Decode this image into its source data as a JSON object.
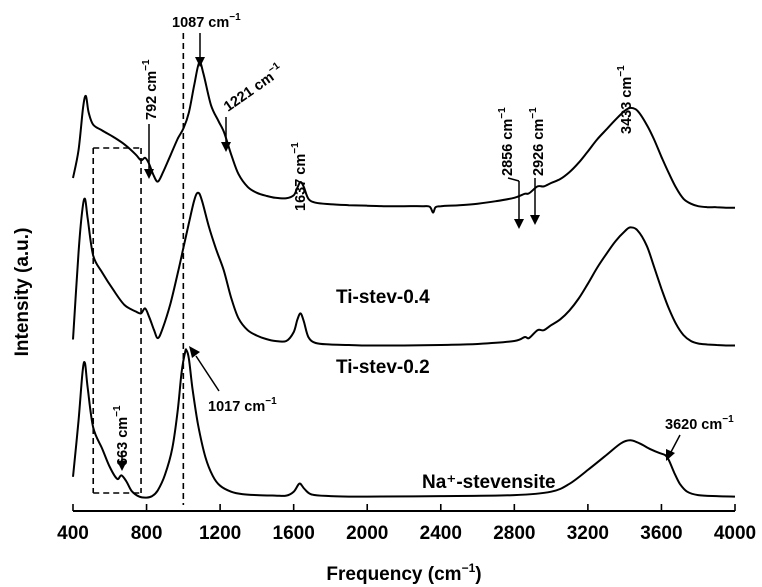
{
  "chart_data": {
    "type": "line",
    "title": "",
    "xlabel": "Frequency",
    "xlabel_unit_base": "cm",
    "xlabel_unit_exp": "−1",
    "ylabel": "Intensity (a.u.)",
    "xlim": [
      400,
      4000
    ],
    "x_ticks": [
      400,
      800,
      1200,
      1600,
      2000,
      2400,
      2800,
      3200,
      3600,
      4000
    ],
    "x_tick_labels": [
      "400",
      "800",
      "1200",
      "1600",
      "2000",
      "2400",
      "2800",
      "3200",
      "3600",
      "4000"
    ],
    "y_ticks": [],
    "grid": false,
    "legend": "none",
    "series": [
      {
        "name": "Ti-stev-0.4",
        "baseline": 0.0,
        "points": [
          [
            400,
            0.62
          ],
          [
            430,
            1.18
          ],
          [
            455,
            2.05
          ],
          [
            470,
            2.28
          ],
          [
            485,
            1.95
          ],
          [
            510,
            1.7
          ],
          [
            560,
            1.58
          ],
          [
            620,
            1.45
          ],
          [
            680,
            1.3
          ],
          [
            740,
            1.1
          ],
          [
            770,
            0.98
          ],
          [
            792,
            1.03
          ],
          [
            812,
            0.92
          ],
          [
            840,
            0.66
          ],
          [
            862,
            0.55
          ],
          [
            890,
            0.74
          ],
          [
            930,
            1.08
          ],
          [
            970,
            1.42
          ],
          [
            1000,
            1.62
          ],
          [
            1030,
            1.94
          ],
          [
            1060,
            2.52
          ],
          [
            1087,
            2.96
          ],
          [
            1110,
            2.72
          ],
          [
            1150,
            2.1
          ],
          [
            1190,
            1.78
          ],
          [
            1221,
            1.55
          ],
          [
            1260,
            1.1
          ],
          [
            1300,
            0.7
          ],
          [
            1350,
            0.44
          ],
          [
            1400,
            0.32
          ],
          [
            1450,
            0.26
          ],
          [
            1500,
            0.22
          ],
          [
            1560,
            0.21
          ],
          [
            1600,
            0.27
          ],
          [
            1620,
            0.42
          ],
          [
            1637,
            0.54
          ],
          [
            1655,
            0.44
          ],
          [
            1680,
            0.2
          ],
          [
            1720,
            0.12
          ],
          [
            1800,
            0.09
          ],
          [
            1900,
            0.07
          ],
          [
            2000,
            0.06
          ],
          [
            2100,
            0.05
          ],
          [
            2200,
            0.05
          ],
          [
            2300,
            0.05
          ],
          [
            2340,
            0.04
          ],
          [
            2358,
            -0.08
          ],
          [
            2372,
            0.03
          ],
          [
            2400,
            0.05
          ],
          [
            2500,
            0.07
          ],
          [
            2600,
            0.1
          ],
          [
            2700,
            0.15
          ],
          [
            2800,
            0.22
          ],
          [
            2856,
            0.3
          ],
          [
            2880,
            0.31
          ],
          [
            2926,
            0.45
          ],
          [
            2960,
            0.45
          ],
          [
            3000,
            0.52
          ],
          [
            3050,
            0.6
          ],
          [
            3100,
            0.74
          ],
          [
            3150,
            0.93
          ],
          [
            3200,
            1.16
          ],
          [
            3250,
            1.4
          ],
          [
            3300,
            1.6
          ],
          [
            3350,
            1.8
          ],
          [
            3400,
            1.98
          ],
          [
            3433,
            2.04
          ],
          [
            3470,
            1.98
          ],
          [
            3520,
            1.7
          ],
          [
            3560,
            1.4
          ],
          [
            3600,
            1.05
          ],
          [
            3640,
            0.72
          ],
          [
            3680,
            0.42
          ],
          [
            3720,
            0.2
          ],
          [
            3760,
            0.1
          ],
          [
            3800,
            0.05
          ],
          [
            3850,
            0.03
          ],
          [
            3900,
            0.03
          ],
          [
            3950,
            0.02
          ],
          [
            4000,
            0.02
          ]
        ]
      },
      {
        "name": "Ti-stev-0.2",
        "baseline": -2.8,
        "points": [
          [
            400,
            0.15
          ],
          [
            430,
            1.9
          ],
          [
            450,
            2.75
          ],
          [
            465,
            3.0
          ],
          [
            480,
            2.6
          ],
          [
            510,
            1.85
          ],
          [
            560,
            1.5
          ],
          [
            620,
            1.15
          ],
          [
            680,
            0.85
          ],
          [
            740,
            0.72
          ],
          [
            770,
            0.68
          ],
          [
            792,
            0.78
          ],
          [
            815,
            0.6
          ],
          [
            840,
            0.35
          ],
          [
            862,
            0.18
          ],
          [
            890,
            0.4
          ],
          [
            930,
            0.88
          ],
          [
            970,
            1.5
          ],
          [
            1000,
            2.0
          ],
          [
            1030,
            2.5
          ],
          [
            1060,
            2.98
          ],
          [
            1080,
            3.12
          ],
          [
            1100,
            2.98
          ],
          [
            1140,
            2.42
          ],
          [
            1180,
            1.96
          ],
          [
            1220,
            1.55
          ],
          [
            1260,
            1.0
          ],
          [
            1300,
            0.58
          ],
          [
            1350,
            0.34
          ],
          [
            1400,
            0.23
          ],
          [
            1450,
            0.16
          ],
          [
            1500,
            0.12
          ],
          [
            1560,
            0.12
          ],
          [
            1600,
            0.3
          ],
          [
            1620,
            0.55
          ],
          [
            1637,
            0.68
          ],
          [
            1655,
            0.52
          ],
          [
            1680,
            0.2
          ],
          [
            1720,
            0.08
          ],
          [
            1800,
            0.05
          ],
          [
            1900,
            0.04
          ],
          [
            2000,
            0.03
          ],
          [
            2200,
            0.03
          ],
          [
            2400,
            0.04
          ],
          [
            2600,
            0.06
          ],
          [
            2800,
            0.12
          ],
          [
            2856,
            0.2
          ],
          [
            2880,
            0.18
          ],
          [
            2926,
            0.34
          ],
          [
            2960,
            0.34
          ],
          [
            3000,
            0.44
          ],
          [
            3050,
            0.56
          ],
          [
            3100,
            0.74
          ],
          [
            3150,
            0.98
          ],
          [
            3200,
            1.28
          ],
          [
            3250,
            1.6
          ],
          [
            3300,
            1.88
          ],
          [
            3350,
            2.14
          ],
          [
            3400,
            2.34
          ],
          [
            3430,
            2.42
          ],
          [
            3470,
            2.36
          ],
          [
            3520,
            2.05
          ],
          [
            3560,
            1.62
          ],
          [
            3600,
            1.18
          ],
          [
            3640,
            0.78
          ],
          [
            3680,
            0.46
          ],
          [
            3720,
            0.24
          ],
          [
            3760,
            0.12
          ],
          [
            3800,
            0.07
          ],
          [
            3850,
            0.05
          ],
          [
            3900,
            0.04
          ],
          [
            3950,
            0.03
          ],
          [
            4000,
            0.03
          ]
        ]
      },
      {
        "name": "Na⁺-stevensite",
        "baseline": -5.85,
        "points": [
          [
            400,
            0.42
          ],
          [
            430,
            1.55
          ],
          [
            452,
            2.55
          ],
          [
            465,
            2.72
          ],
          [
            480,
            2.22
          ],
          [
            510,
            1.42
          ],
          [
            560,
            0.98
          ],
          [
            600,
            0.62
          ],
          [
            640,
            0.38
          ],
          [
            663,
            0.45
          ],
          [
            690,
            0.33
          ],
          [
            720,
            0.13
          ],
          [
            760,
            0.02
          ],
          [
            800,
            0.0
          ],
          [
            830,
            0.03
          ],
          [
            860,
            0.14
          ],
          [
            900,
            0.46
          ],
          [
            940,
            1.0
          ],
          [
            970,
            1.78
          ],
          [
            990,
            2.52
          ],
          [
            1010,
            2.95
          ],
          [
            1017,
            2.98
          ],
          [
            1030,
            2.82
          ],
          [
            1050,
            2.2
          ],
          [
            1080,
            1.48
          ],
          [
            1120,
            0.82
          ],
          [
            1160,
            0.44
          ],
          [
            1200,
            0.24
          ],
          [
            1260,
            0.12
          ],
          [
            1320,
            0.07
          ],
          [
            1400,
            0.05
          ],
          [
            1500,
            0.04
          ],
          [
            1560,
            0.04
          ],
          [
            1600,
            0.12
          ],
          [
            1625,
            0.26
          ],
          [
            1637,
            0.28
          ],
          [
            1660,
            0.17
          ],
          [
            1700,
            0.06
          ],
          [
            1800,
            0.03
          ],
          [
            1900,
            0.02
          ],
          [
            2000,
            0.02
          ],
          [
            2400,
            0.03
          ],
          [
            2800,
            0.05
          ],
          [
            3000,
            0.12
          ],
          [
            3100,
            0.28
          ],
          [
            3200,
            0.56
          ],
          [
            3300,
            0.86
          ],
          [
            3380,
            1.1
          ],
          [
            3430,
            1.16
          ],
          [
            3480,
            1.1
          ],
          [
            3540,
            0.98
          ],
          [
            3590,
            0.9
          ],
          [
            3620,
            0.86
          ],
          [
            3640,
            0.76
          ],
          [
            3670,
            0.5
          ],
          [
            3700,
            0.28
          ],
          [
            3740,
            0.12
          ],
          [
            3800,
            0.05
          ],
          [
            3900,
            0.03
          ],
          [
            4000,
            0.02
          ]
        ]
      }
    ],
    "annotations": [
      {
        "text": "1087 cm",
        "exp": "−1",
        "x": 1087
      },
      {
        "text": "792 cm",
        "exp": "−1",
        "x": 792
      },
      {
        "text": "1221 cm",
        "exp": "−1",
        "x": 1221
      },
      {
        "text": "1637 cm",
        "exp": "−1",
        "x": 1637
      },
      {
        "text": "2856 cm",
        "exp": "−1",
        "x": 2856
      },
      {
        "text": "2926 cm",
        "exp": "−1",
        "x": 2926
      },
      {
        "text": "3433 cm",
        "exp": "−1",
        "x": 3433
      },
      {
        "text": "1017 cm",
        "exp": "−1",
        "x": 1017
      },
      {
        "text": "663 cm",
        "exp": "−1",
        "x": 663
      },
      {
        "text": "3620 cm",
        "exp": "−1",
        "x": 3620
      }
    ],
    "guide_lines_x": [
      510,
      770,
      1000
    ]
  }
}
